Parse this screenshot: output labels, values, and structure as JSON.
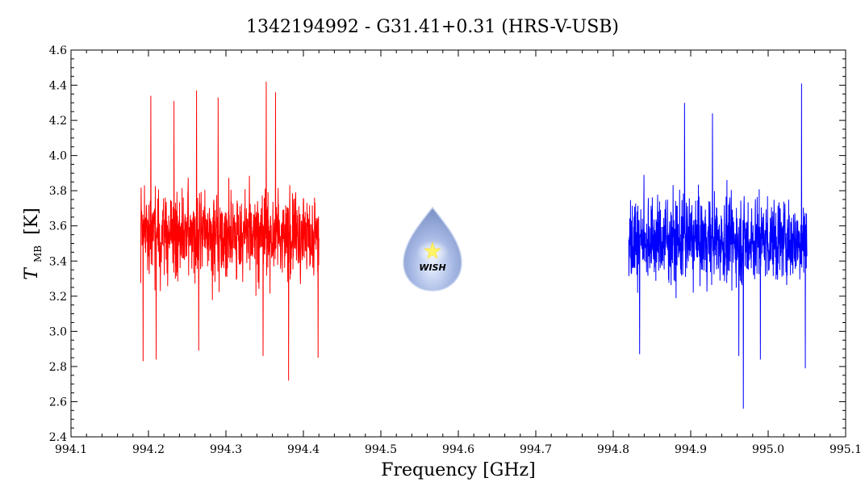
{
  "chart_data": {
    "type": "line",
    "title": "1342194992 - G31.41+0.31 (HRS-V-USB)",
    "xlabel": "Frequency [GHz]",
    "ylabel": "T",
    "ylabel_subscript": "MB",
    "ylabel_unit": "[K]",
    "xlim": [
      994.1,
      995.1
    ],
    "ylim": [
      2.4,
      4.6
    ],
    "x_ticks": [
      "994.1",
      "994.2",
      "994.3",
      "994.4",
      "994.5",
      "994.6",
      "994.7",
      "994.8",
      "994.9",
      "995.0",
      "995.1"
    ],
    "y_ticks": [
      "2.4",
      "2.6",
      "2.8",
      "3.0",
      "3.2",
      "3.4",
      "3.6",
      "3.8",
      "4.0",
      "4.2",
      "4.4",
      "4.6"
    ],
    "x_minor_step": 0.02,
    "y_minor_step": 0.05,
    "grid": false,
    "series": [
      {
        "color": "#ff0000",
        "x_range": [
          994.19,
          994.42
        ],
        "mean": 3.55,
        "min": 2.72,
        "max": 4.42,
        "spikes": [
          {
            "x": 994.203,
            "y": 4.34
          },
          {
            "x": 994.233,
            "y": 4.31
          },
          {
            "x": 994.262,
            "y": 4.37
          },
          {
            "x": 994.29,
            "y": 4.33
          },
          {
            "x": 994.352,
            "y": 4.42
          },
          {
            "x": 994.364,
            "y": 4.36
          },
          {
            "x": 994.193,
            "y": 2.83
          },
          {
            "x": 994.21,
            "y": 2.84
          },
          {
            "x": 994.265,
            "y": 2.89
          },
          {
            "x": 994.348,
            "y": 2.86
          },
          {
            "x": 994.381,
            "y": 2.72
          },
          {
            "x": 994.419,
            "y": 2.85
          }
        ]
      },
      {
        "color": "#0000ff",
        "x_range": [
          994.82,
          995.05
        ],
        "mean": 3.52,
        "min": 2.56,
        "max": 4.41,
        "spikes": [
          {
            "x": 994.892,
            "y": 4.3
          },
          {
            "x": 994.928,
            "y": 4.24
          },
          {
            "x": 995.043,
            "y": 4.41
          },
          {
            "x": 994.834,
            "y": 2.87
          },
          {
            "x": 994.962,
            "y": 2.86
          },
          {
            "x": 994.968,
            "y": 2.56
          },
          {
            "x": 994.99,
            "y": 2.84
          },
          {
            "x": 995.048,
            "y": 2.79
          }
        ]
      }
    ]
  },
  "logo": {
    "icon": "wish-droplet-icon",
    "text": "WISH",
    "body_color": "#8fa6dc",
    "star_color": "#fff36a"
  }
}
